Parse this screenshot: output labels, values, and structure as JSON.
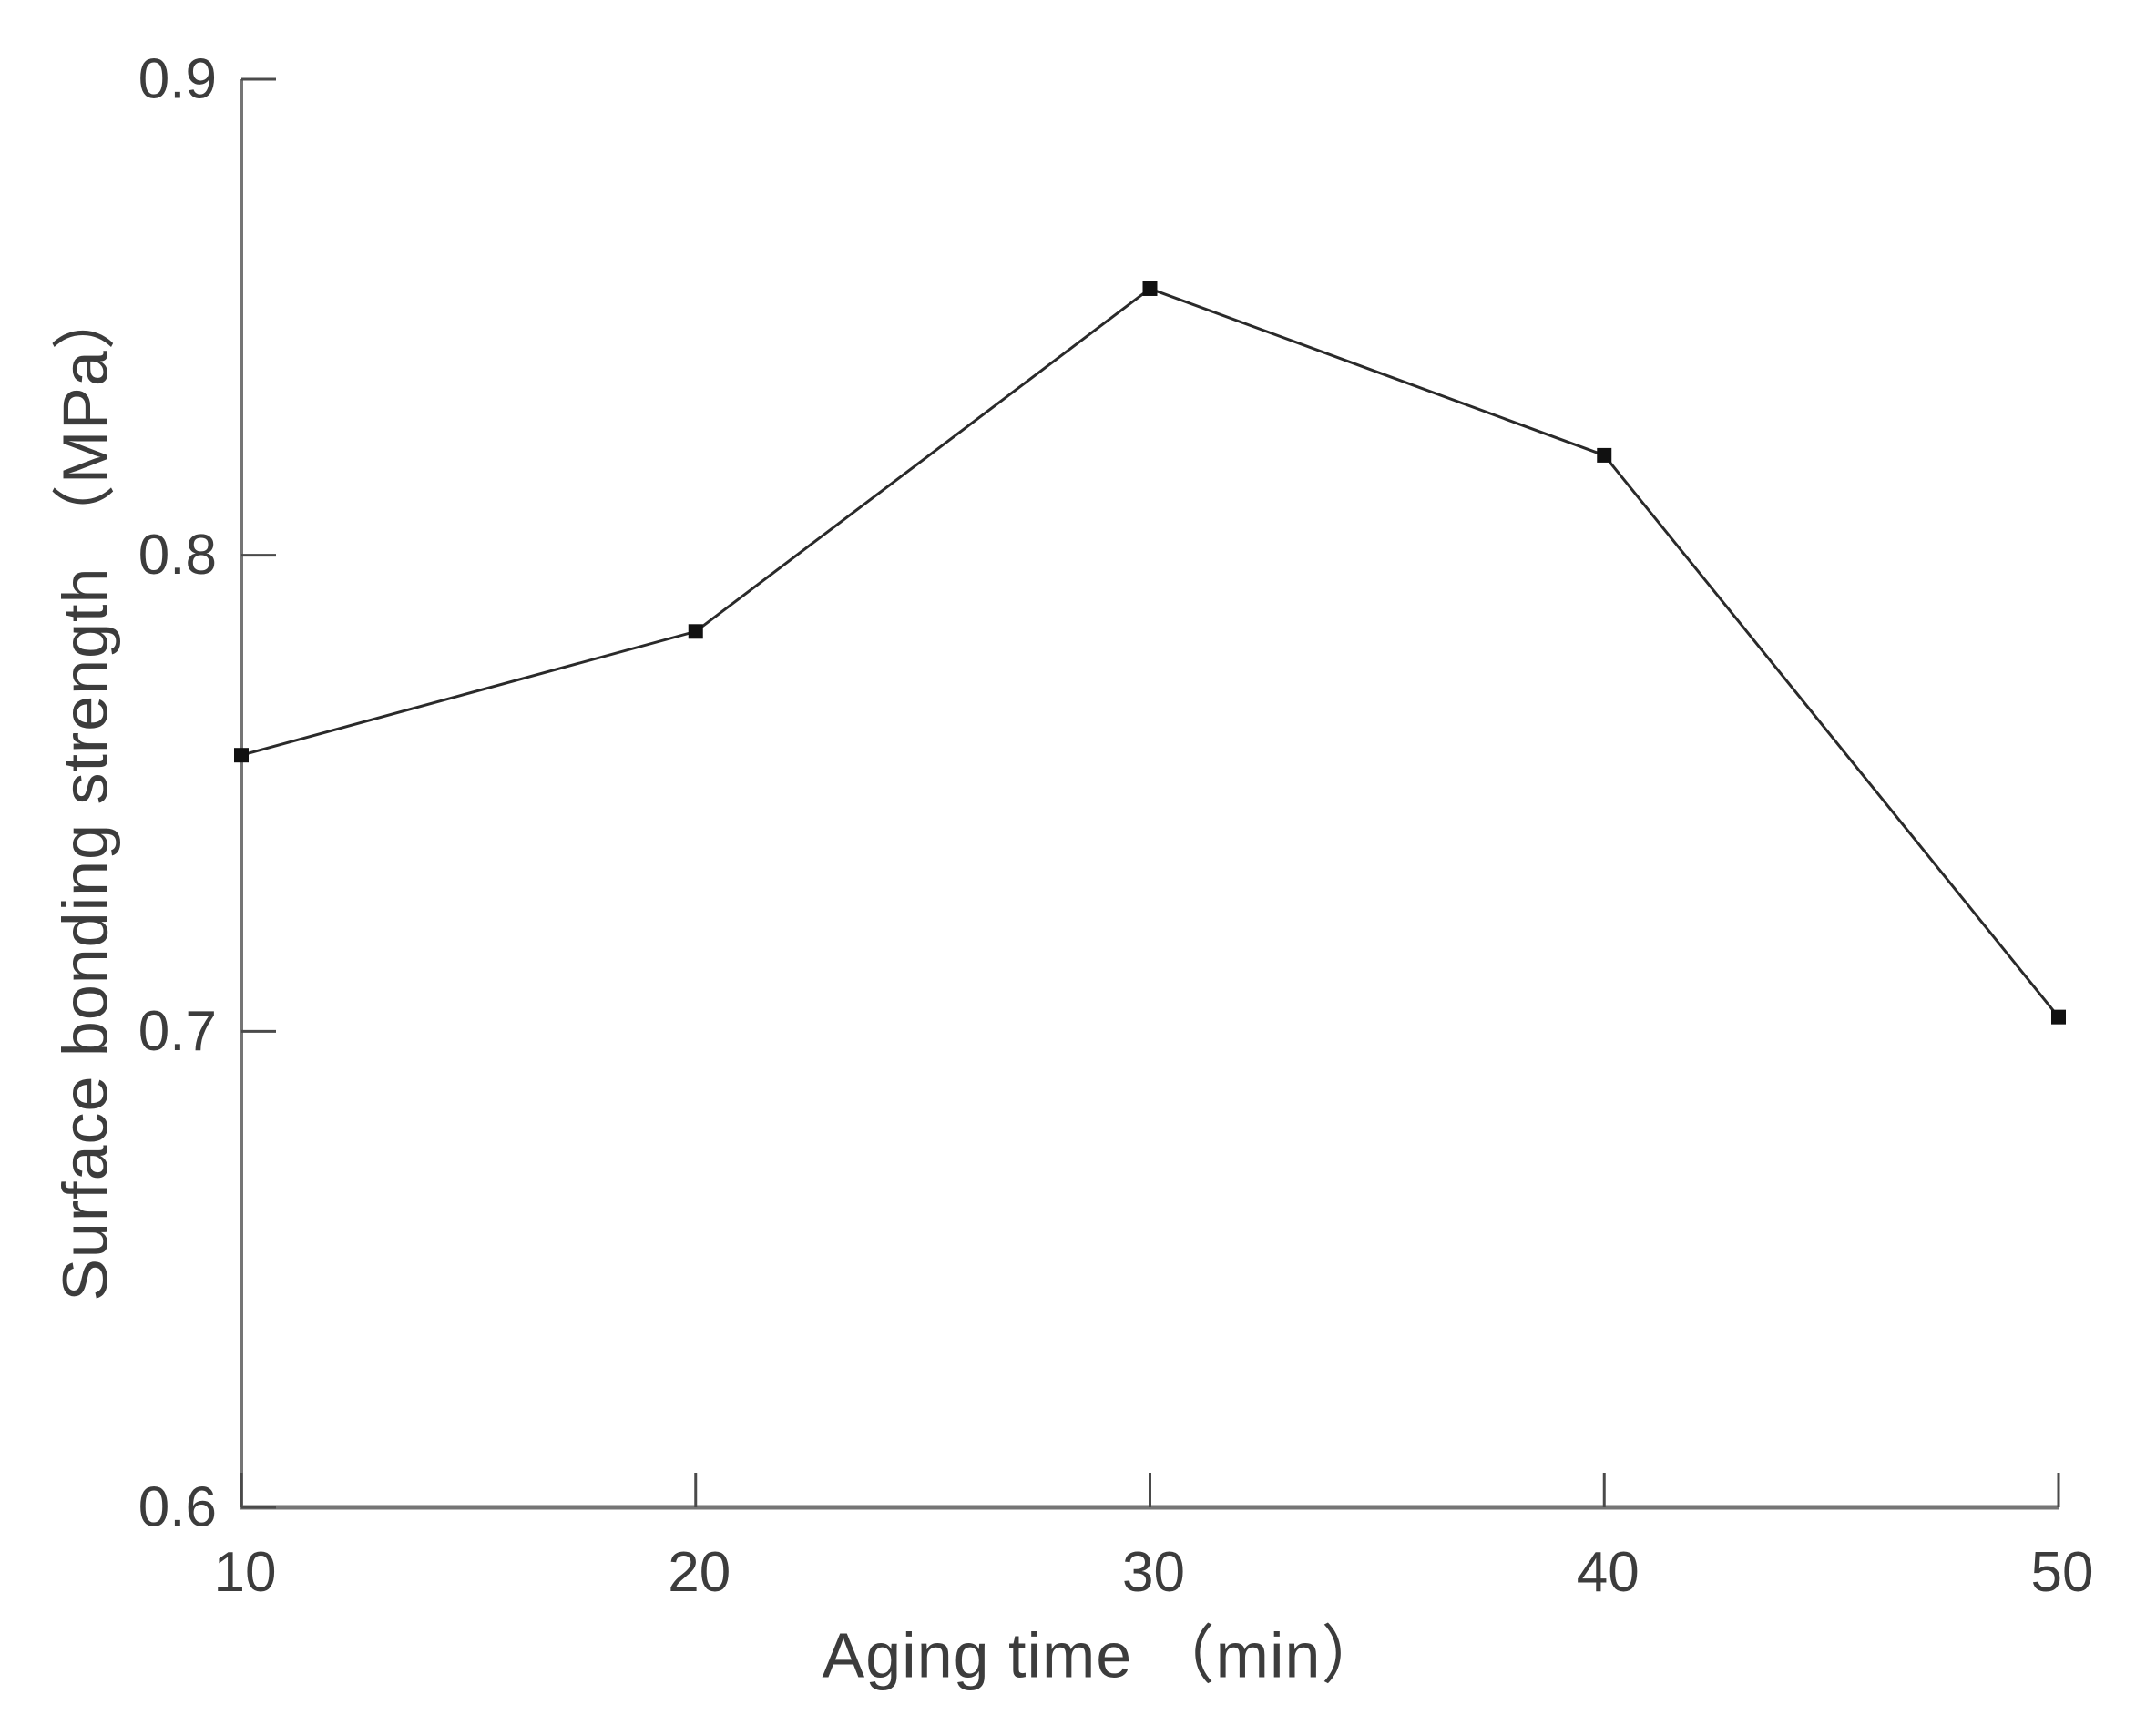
{
  "page": {
    "background": "#ffffff"
  },
  "chart_data": {
    "type": "line",
    "title": "",
    "xlabel": "Aging time （min）",
    "ylabel": "Surface bonding strength （MPa）",
    "x": [
      10,
      20,
      30,
      40,
      50
    ],
    "y": [
      0.758,
      0.784,
      0.856,
      0.821,
      0.703
    ],
    "series": [
      {
        "name": "Surface bonding strength",
        "values": [
          0.758,
          0.784,
          0.856,
          0.821,
          0.703
        ]
      }
    ],
    "xlim": [
      10,
      50
    ],
    "ylim": [
      0.6,
      0.9
    ],
    "xticks": [
      "10",
      "20",
      "30",
      "40",
      "50"
    ],
    "yticks": [
      "0.6",
      "0.7",
      "0.8",
      "0.9"
    ],
    "grid": false,
    "legend": "none",
    "marker": "square",
    "line_color": "#2a2a2a",
    "marker_color": "#111111",
    "axis_color": "#757575",
    "tick_color": "#4a4a4a",
    "tick_label_color": "#3c3c3c",
    "axis_label_color": "#3c3c3c",
    "tick_font_size": 62,
    "label_font_size": 70
  }
}
